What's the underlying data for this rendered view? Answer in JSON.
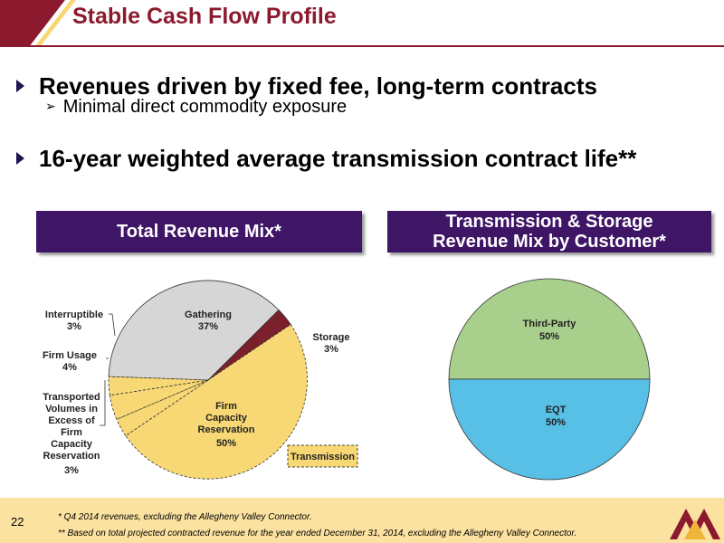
{
  "slide": {
    "title": "Stable Cash Flow Profile",
    "page_number": "22"
  },
  "bullets": [
    {
      "text": "Revenues driven by fixed fee, long-term contracts"
    },
    {
      "text": "16-year weighted average transmission contract life**"
    }
  ],
  "sub_bullets": [
    {
      "text": "Minimal direct commodity exposure"
    }
  ],
  "panels": {
    "left_title": "Total Revenue Mix*",
    "right_title_line1": "Transmission & Storage",
    "right_title_line2": "Revenue Mix by Customer*"
  },
  "legend": {
    "transmission": "Transmission"
  },
  "footnotes": [
    "* Q4 2014 revenues, excluding the Allegheny Valley Connector.",
    "** Based on total projected contracted revenue for the year ended December 31, 2014, excluding the Allegheny Valley Connector."
  ],
  "colors": {
    "title": "#8b1a2e",
    "banner": "#3f1566",
    "gathering": "#d6d6d6",
    "storage": "#7a1f2b",
    "transmission": "#f8d874",
    "third_party": "#a9cf8c",
    "eqt": "#58bfe6",
    "footer": "#fbe2a0"
  },
  "chart_data": [
    {
      "type": "pie",
      "title": "Total Revenue Mix*",
      "slices": [
        {
          "label": "Gathering",
          "value": 37,
          "display": "37%",
          "group": ""
        },
        {
          "label": "Storage",
          "value": 3,
          "display": "3%",
          "group": ""
        },
        {
          "label": "Firm Capacity Reservation",
          "value": 50,
          "display": "50%",
          "group": "Transmission"
        },
        {
          "label": "Transported Volumes in Excess of Firm Capacity Reservation",
          "value": 3,
          "display": "3%",
          "group": "Transmission"
        },
        {
          "label": "Firm Usage",
          "value": 4,
          "display": "4%",
          "group": "Transmission"
        },
        {
          "label": "Interruptible",
          "value": 3,
          "display": "3%",
          "group": "Transmission"
        }
      ]
    },
    {
      "type": "pie",
      "title": "Transmission & Storage Revenue Mix by Customer*",
      "slices": [
        {
          "label": "Third-Party",
          "value": 50,
          "display": "50%"
        },
        {
          "label": "EQT",
          "value": 50,
          "display": "50%"
        }
      ]
    }
  ]
}
